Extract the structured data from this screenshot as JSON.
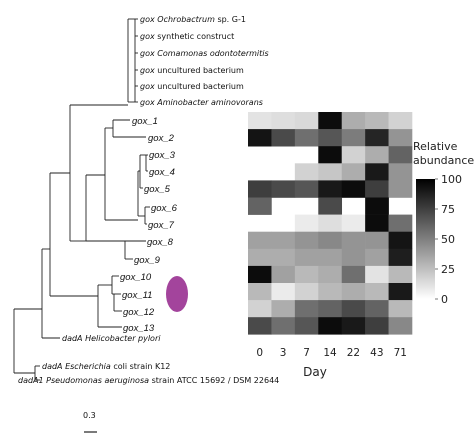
{
  "chart_data": {
    "type": "heatmap",
    "xlabel": "Day",
    "legend_title_lines": [
      "Relative",
      "abundance"
    ],
    "legend_ticks": [
      100,
      75,
      50,
      25,
      0
    ],
    "color_range": [
      0,
      100
    ],
    "scale_bar": "0.3",
    "x": [
      "0",
      "3",
      "7",
      "14",
      "22",
      "43",
      "71"
    ],
    "rows": [
      "gox_1",
      "gox_2",
      "gox_3",
      "gox_4",
      "gox_5",
      "gox_6",
      "gox_7",
      "gox_8",
      "gox_9",
      "gox_10",
      "gox_11",
      "gox_12",
      "gox_13"
    ],
    "values": [
      [
        8,
        10,
        12,
        95,
        30,
        25,
        15
      ],
      [
        92,
        70,
        55,
        65,
        50,
        85,
        40
      ],
      [
        null,
        null,
        null,
        95,
        15,
        30,
        60
      ],
      [
        null,
        null,
        15,
        20,
        30,
        90,
        40
      ],
      [
        75,
        70,
        65,
        90,
        95,
        75,
        40
      ],
      [
        60,
        null,
        null,
        70,
        null,
        95,
        null
      ],
      [
        null,
        null,
        5,
        10,
        5,
        95,
        55
      ],
      [
        35,
        35,
        40,
        45,
        40,
        40,
        92
      ],
      [
        30,
        30,
        35,
        35,
        40,
        35,
        88
      ],
      [
        95,
        35,
        25,
        30,
        55,
        8,
        25
      ],
      [
        25,
        5,
        15,
        25,
        30,
        25,
        90
      ],
      [
        15,
        30,
        55,
        60,
        70,
        60,
        25
      ],
      [
        70,
        55,
        65,
        95,
        90,
        75,
        45
      ]
    ]
  },
  "tree_labels": [
    {
      "id": "gox_och",
      "prefix": "gox",
      "rest": "Ochrobactrum",
      "suffix": "sp. G-1"
    },
    {
      "id": "gox_syn",
      "prefix": "gox",
      "rest": "",
      "suffix": "synthetic construct"
    },
    {
      "id": "gox_com",
      "prefix": "gox",
      "rest": "Comamonas odontotermitis",
      "suffix": ""
    },
    {
      "id": "gox_unc1",
      "prefix": "gox",
      "rest": "",
      "suffix": "uncultured bacterium"
    },
    {
      "id": "gox_unc2",
      "prefix": "gox",
      "rest": "",
      "suffix": "uncultured bacterium"
    },
    {
      "id": "gox_ami",
      "prefix": "gox",
      "rest": "Aminobacter aminovorans",
      "suffix": ""
    },
    {
      "id": "dada_hel",
      "prefix": "dadA",
      "rest": "Helicobacter pylori",
      "suffix": ""
    },
    {
      "id": "dada_eco",
      "prefix": "dadA",
      "rest": "Escherichia",
      "suffix": "coli strain K12"
    },
    {
      "id": "dada1_pse",
      "prefix": "dadA1",
      "rest": "Pseudomonas aeruginosa",
      "suffix": "strain ATCC 15692 / DSM 22644"
    }
  ]
}
